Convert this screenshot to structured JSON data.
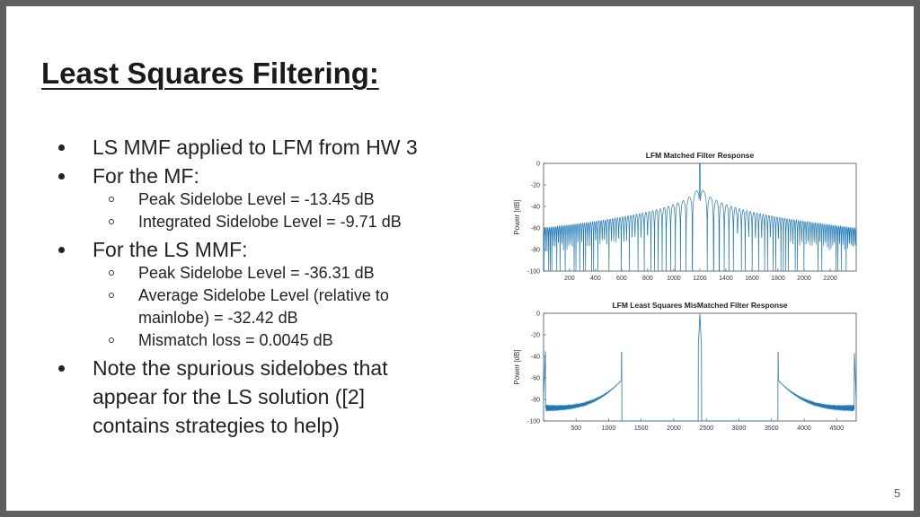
{
  "slide": {
    "title": "Least Squares Filtering:",
    "page_number": "5",
    "bullets": {
      "b1": "LS MMF applied to LFM from HW 3",
      "b2": "For the MF:",
      "b2_1": "Peak Sidelobe Level = -13.45 dB",
      "b2_2": "Integrated Sidelobe Level =  -9.71 dB",
      "b3": "For the LS MMF:",
      "b3_1": "Peak Sidelobe Level = -36.31 dB",
      "b3_2a": "Average Sidelobe Level (relative to",
      "b3_2b": "mainlobe) =  -32.42 dB",
      "b3_3": "Mismatch loss = 0.0045 dB",
      "b4a": "Note the spurious sidelobes that",
      "b4b": "appear for the LS solution ([2]",
      "b4c": "contains strategies to help)"
    }
  },
  "chart_data": [
    {
      "type": "line",
      "title": "LFM Matched Filter Response",
      "xlabel": "",
      "ylabel": "Power [dB]",
      "xlim": [
        1,
        2400
      ],
      "ylim": [
        -100,
        0
      ],
      "xticks": [
        200,
        400,
        600,
        800,
        1000,
        1200,
        1400,
        1600,
        1800,
        2000,
        2200
      ],
      "yticks": [
        0,
        -20,
        -40,
        -60,
        -80,
        -100
      ],
      "series_color": "#1f77b4",
      "description_points": {
        "mainlobe_center": 1200,
        "mainlobe_peak": 0,
        "first_sidelobe": -13.45,
        "edge_level": -60,
        "floor_nulls": -100
      }
    },
    {
      "type": "line",
      "title": "LFM Least Squares MisMatched Filter Response",
      "xlabel": "",
      "ylabel": "Power [dB]",
      "xlim": [
        1,
        4800
      ],
      "ylim": [
        -100,
        0
      ],
      "xticks": [
        500,
        1000,
        1500,
        2000,
        2500,
        3000,
        3500,
        4000,
        4500
      ],
      "yticks": [
        0,
        -20,
        -40,
        -60,
        -80,
        -100
      ],
      "series_color": "#1f77b4",
      "description_points": {
        "mainlobe_center": 2400,
        "mainlobe_peak": 0,
        "spurious_left_x": 1200,
        "spurious_right_x": 3600,
        "spurious_peak": -36,
        "edge_level": -62
      }
    }
  ]
}
